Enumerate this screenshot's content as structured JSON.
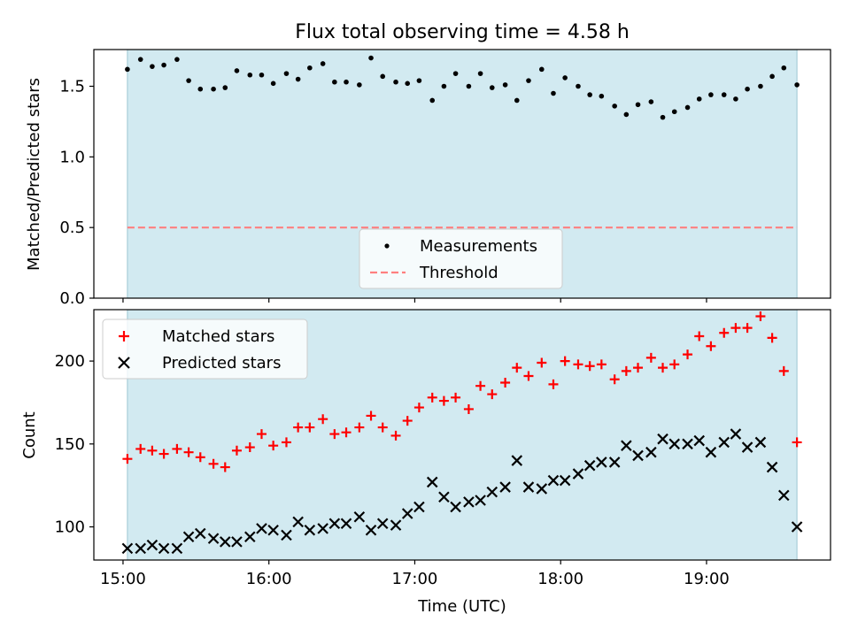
{
  "figure": {
    "title": "Flux total observing time = 4.58 h",
    "xlabel": "Time (UTC)",
    "xticks": [
      "15:00",
      "16:00",
      "17:00",
      "18:00",
      "19:00"
    ]
  },
  "colors": {
    "shade": "#add8e6",
    "measure": "#000000",
    "threshold": "#ff7f7f",
    "matched": "#ff0000",
    "predicted": "#000000"
  },
  "chart_data": [
    {
      "type": "scatter",
      "panel": "top",
      "title": "Flux total observing time = 4.58 h",
      "xlabel": "",
      "ylabel": "Matched/Predicted stars",
      "xunit": "hours UTC",
      "xlim": [
        14.8,
        19.85
      ],
      "ylim": [
        0.0,
        1.76
      ],
      "yticks": [
        "0.0",
        "0.5",
        "1.0",
        "1.5"
      ],
      "yticks_values": [
        0.0,
        0.5,
        1.0,
        1.5
      ],
      "shaded_span": [
        15.03,
        19.62
      ],
      "threshold": 0.5,
      "legend": {
        "location": "lower center",
        "entries": [
          "Measurements",
          "Threshold"
        ]
      },
      "x": [
        15.03,
        15.12,
        15.2,
        15.28,
        15.37,
        15.45,
        15.53,
        15.62,
        15.7,
        15.78,
        15.87,
        15.95,
        16.03,
        16.12,
        16.2,
        16.28,
        16.37,
        16.45,
        16.53,
        16.62,
        16.7,
        16.78,
        16.87,
        16.95,
        17.03,
        17.12,
        17.2,
        17.28,
        17.37,
        17.45,
        17.53,
        17.62,
        17.7,
        17.78,
        17.87,
        17.95,
        18.03,
        18.12,
        18.2,
        18.28,
        18.37,
        18.45,
        18.53,
        18.62,
        18.7,
        18.78,
        18.87,
        18.95,
        19.03,
        19.12,
        19.2,
        19.28,
        19.37,
        19.45,
        19.53,
        19.62
      ],
      "values": [
        1.62,
        1.69,
        1.64,
        1.65,
        1.69,
        1.54,
        1.48,
        1.48,
        1.49,
        1.61,
        1.58,
        1.58,
        1.52,
        1.59,
        1.55,
        1.63,
        1.66,
        1.53,
        1.53,
        1.51,
        1.7,
        1.57,
        1.53,
        1.52,
        1.54,
        1.4,
        1.5,
        1.59,
        1.5,
        1.59,
        1.49,
        1.51,
        1.4,
        1.54,
        1.62,
        1.45,
        1.56,
        1.5,
        1.44,
        1.43,
        1.36,
        1.3,
        1.37,
        1.39,
        1.28,
        1.32,
        1.35,
        1.41,
        1.44,
        1.44,
        1.41,
        1.48,
        1.5,
        1.57,
        1.63,
        1.51
      ]
    },
    {
      "type": "scatter",
      "panel": "bottom",
      "xlabel": "Time (UTC)",
      "ylabel": "Count",
      "xunit": "hours UTC",
      "xlim": [
        14.8,
        19.85
      ],
      "ylim": [
        80,
        231
      ],
      "yticks": [
        "100",
        "150",
        "200"
      ],
      "yticks_values": [
        100,
        150,
        200
      ],
      "shaded_span": [
        15.03,
        19.62
      ],
      "legend": {
        "location": "upper left",
        "entries": [
          "Matched stars",
          "Predicted stars"
        ]
      },
      "x": [
        15.03,
        15.12,
        15.2,
        15.28,
        15.37,
        15.45,
        15.53,
        15.62,
        15.7,
        15.78,
        15.87,
        15.95,
        16.03,
        16.12,
        16.2,
        16.28,
        16.37,
        16.45,
        16.53,
        16.62,
        16.7,
        16.78,
        16.87,
        16.95,
        17.03,
        17.12,
        17.2,
        17.28,
        17.37,
        17.45,
        17.53,
        17.62,
        17.7,
        17.78,
        17.87,
        17.95,
        18.03,
        18.12,
        18.2,
        18.28,
        18.37,
        18.45,
        18.53,
        18.62,
        18.7,
        18.78,
        18.87,
        18.95,
        19.03,
        19.12,
        19.2,
        19.28,
        19.37,
        19.45,
        19.53,
        19.62
      ],
      "series": [
        {
          "name": "Matched stars",
          "marker": "+",
          "values": [
            141,
            147,
            146,
            144,
            147,
            145,
            142,
            138,
            136,
            146,
            148,
            156,
            149,
            151,
            160,
            160,
            165,
            156,
            157,
            160,
            167,
            160,
            155,
            164,
            172,
            178,
            176,
            178,
            171,
            185,
            180,
            187,
            196,
            191,
            199,
            186,
            200,
            198,
            197,
            198,
            189,
            194,
            196,
            202,
            196,
            198,
            204,
            215,
            209,
            217,
            220,
            220,
            227,
            214,
            194,
            151
          ]
        },
        {
          "name": "Predicted stars",
          "marker": "x",
          "values": [
            87,
            87,
            89,
            87,
            87,
            94,
            96,
            93,
            91,
            91,
            94,
            99,
            98,
            95,
            103,
            98,
            99,
            102,
            102,
            106,
            98,
            102,
            101,
            108,
            112,
            127,
            118,
            112,
            115,
            116,
            121,
            124,
            140,
            124,
            123,
            128,
            128,
            132,
            137,
            139,
            139,
            149,
            143,
            145,
            153,
            150,
            150,
            152,
            145,
            151,
            156,
            148,
            151,
            136,
            119,
            100
          ]
        }
      ]
    }
  ]
}
